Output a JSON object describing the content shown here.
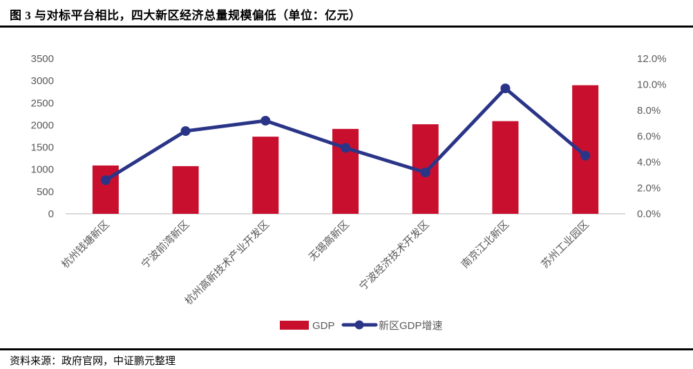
{
  "title": "图 3 与对标平台相比，四大新区经济总量规模偏低（单位：亿元）",
  "footer": "资料来源：政府官网，中证鹏元整理",
  "colors": {
    "bar": "#C8102E",
    "line": "#2A3588",
    "axis_text": "#595959",
    "baseline": "#D9D9D9",
    "rule": "#000000"
  },
  "chart_data": {
    "type": "bar",
    "subtype": "bar+line combo, dual axis",
    "title": "图 3 与对标平台相比，四大新区经济总量规模偏低（单位：亿元）",
    "categories": [
      "杭州钱塘新区",
      "宁波前湾新区",
      "杭州高新技术产业开发区",
      "无锡高新区",
      "宁波经济技术开发区",
      "南京江北新区",
      "苏州工业园区"
    ],
    "series": [
      {
        "name": "GDP",
        "type": "bar",
        "axis": "left",
        "color": "#C8102E",
        "values": [
          1090,
          1075,
          1740,
          1915,
          2020,
          2090,
          2900
        ]
      },
      {
        "name": "新区GDP增速",
        "type": "line",
        "axis": "right",
        "color": "#2A3588",
        "unit": "%",
        "values": [
          2.6,
          6.4,
          7.2,
          5.1,
          3.2,
          9.7,
          4.5
        ]
      }
    ],
    "left_axis": {
      "min": 0,
      "max": 3500,
      "step": 500,
      "ticks": [
        "0",
        "500",
        "1000",
        "1500",
        "2000",
        "2500",
        "3000",
        "3500"
      ]
    },
    "right_axis": {
      "min": 0,
      "max": 12,
      "step": 2,
      "ticks": [
        "0.0%",
        "2.0%",
        "4.0%",
        "6.0%",
        "8.0%",
        "10.0%",
        "12.0%"
      ]
    },
    "legend": [
      "GDP",
      "新区GDP增速"
    ],
    "legend_position": "bottom-center",
    "grid": false,
    "category_label_rotation_deg": 45
  }
}
